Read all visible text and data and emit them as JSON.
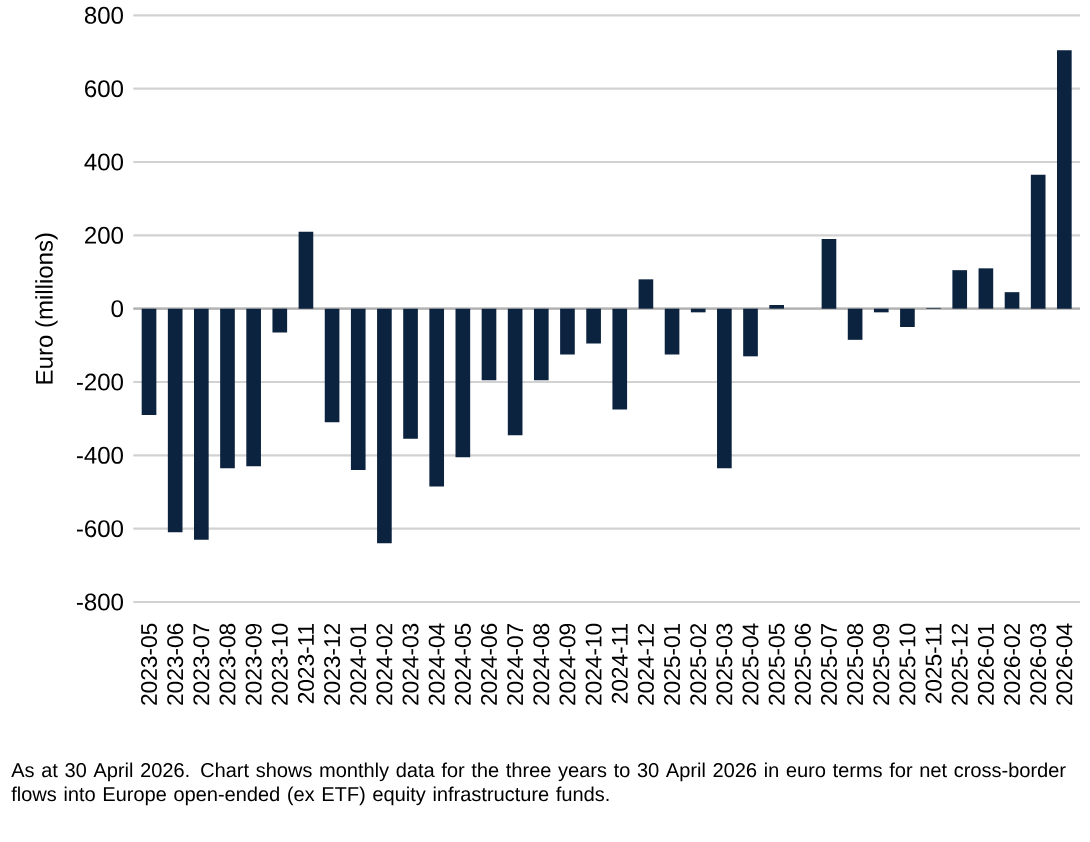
{
  "chart_data": {
    "type": "bar",
    "ylabel": "Euro (millions)",
    "categories": [
      "2023-05",
      "2023-06",
      "2023-07",
      "2023-08",
      "2023-09",
      "2023-10",
      "2023-11",
      "2023-12",
      "2024-01",
      "2024-02",
      "2024-03",
      "2024-04",
      "2024-05",
      "2024-06",
      "2024-07",
      "2024-08",
      "2024-09",
      "2024-10",
      "2024-11",
      "2024-12",
      "2025-01",
      "2025-02",
      "2025-03",
      "2025-04",
      "2025-05",
      "2025-06",
      "2025-07",
      "2025-08",
      "2025-09",
      "2025-10",
      "2025-11",
      "2025-12",
      "2026-01",
      "2026-02",
      "2026-03",
      "2026-04"
    ],
    "values": [
      -290,
      -610,
      -630,
      -435,
      -430,
      -65,
      210,
      -310,
      -440,
      -640,
      -355,
      -485,
      -405,
      -195,
      -345,
      -195,
      -125,
      -95,
      -275,
      80,
      -125,
      -10,
      -435,
      -130,
      10,
      0,
      190,
      -85,
      -10,
      -50,
      2,
      105,
      110,
      45,
      365,
      705
    ],
    "color": "#0c2340",
    "ylim": [
      -800,
      800
    ],
    "yticks": [
      -800,
      -600,
      -400,
      -200,
      0,
      200,
      400,
      600,
      800
    ],
    "grid": "y",
    "annotations": [
      "As at 30 April 2026. Chart shows monthly data for the three years to 30 April 2026 in euro terms for net cross-border flows into Europe open-ended (ex ETF) equity infrastructure funds."
    ]
  }
}
